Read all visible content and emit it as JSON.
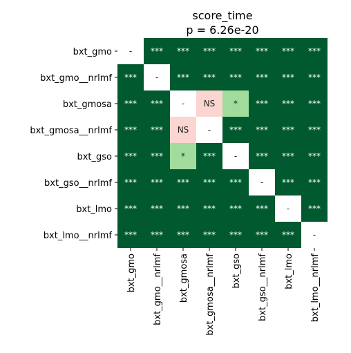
{
  "chart_data": {
    "type": "heatmap",
    "title": "score_time",
    "subtitle": "p = 6.26e-20",
    "labels": [
      "bxt_gmo",
      "bxt_gmo__nrlmf",
      "bxt_gmosa",
      "bxt_gmosa__nrlmf",
      "bxt_gso",
      "bxt_gso__nrlmf",
      "bxt_lmo",
      "bxt_lmo__nrlmf"
    ],
    "matrix": [
      [
        "-",
        "***",
        "***",
        "***",
        "***",
        "***",
        "***",
        "***"
      ],
      [
        "***",
        "-",
        "***",
        "***",
        "***",
        "***",
        "***",
        "***"
      ],
      [
        "***",
        "***",
        "-",
        "NS",
        "*",
        "***",
        "***",
        "***"
      ],
      [
        "***",
        "***",
        "NS",
        "-",
        "***",
        "***",
        "***",
        "***"
      ],
      [
        "***",
        "***",
        "*",
        "***",
        "-",
        "***",
        "***",
        "***"
      ],
      [
        "***",
        "***",
        "***",
        "***",
        "***",
        "-",
        "***",
        "***"
      ],
      [
        "***",
        "***",
        "***",
        "***",
        "***",
        "***",
        "-",
        "***"
      ],
      [
        "***",
        "***",
        "***",
        "***",
        "***",
        "***",
        "***",
        "-"
      ]
    ],
    "colors": {
      "***": "#00592f",
      "*": "#a1dc9d",
      "NS": "#fbd5d0",
      "-": "#ffffff"
    },
    "text_colors": {
      "***": "#ffffff",
      "*": "#222222",
      "NS": "#222222",
      "-": "#222222"
    },
    "triangle": "upper-right mask of last diagonal cell"
  }
}
